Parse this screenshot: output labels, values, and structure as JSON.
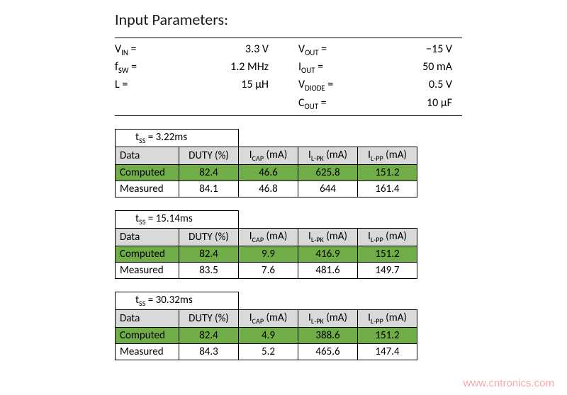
{
  "title": "Input Parameters:",
  "params": {
    "left": [
      {
        "label_html": "V<sub>IN</sub> =",
        "value": "3.3 V"
      },
      {
        "label_html": "f<sub>SW</sub> =",
        "value": "1.2 MHz"
      },
      {
        "label_html": "L =",
        "value": "15 µH"
      }
    ],
    "right": [
      {
        "label_html": "V<sub>OUT</sub> =",
        "value": "−15 V"
      },
      {
        "label_html": "I<sub>OUT</sub> =",
        "value": "50 mA"
      },
      {
        "label_html": "V<sub>DIODE</sub> =",
        "value": "0.5 V"
      },
      {
        "label_html": "C<sub>OUT</sub> =",
        "value": "10 µF"
      }
    ]
  },
  "colors": {
    "header_bg": "#d9d9d9",
    "computed_bg": "#70ad47",
    "border": "#000000",
    "text": "#000000",
    "watermark": "#ff0000"
  },
  "table_headers": {
    "data": "Data",
    "duty": "DUTY (%)",
    "icap_html": "I<sub>CAP</sub> (mA)",
    "ilpk_html": "I<sub>L-PK</sub> (mA)",
    "ilpp_html": "I<sub>L-PP</sub> (mA)"
  },
  "row_labels": {
    "computed": "Computed",
    "measured": "Measured"
  },
  "tables": [
    {
      "tss_html": "t<sub>SS</sub> = 3.22ms",
      "computed": {
        "duty": "82.4",
        "icap": "46.6",
        "ilpk": "625.8",
        "ilpp": "151.2"
      },
      "measured": {
        "duty": "84.1",
        "icap": "46.8",
        "ilpk": "644",
        "ilpp": "161.4"
      }
    },
    {
      "tss_html": "t<sub>SS</sub> = 15.14ms",
      "computed": {
        "duty": "82.4",
        "icap": "9.9",
        "ilpk": "416.9",
        "ilpp": "151.2"
      },
      "measured": {
        "duty": "83.5",
        "icap": "7.6",
        "ilpk": "481.6",
        "ilpp": "149.7"
      }
    },
    {
      "tss_html": "t<sub>SS</sub> = 30.32ms",
      "computed": {
        "duty": "82.4",
        "icap": "4.9",
        "ilpk": "388.6",
        "ilpp": "151.2"
      },
      "measured": {
        "duty": "84.3",
        "icap": "5.2",
        "ilpk": "465.6",
        "ilpp": "147.4"
      }
    }
  ],
  "watermark": "www.cntronics.com"
}
